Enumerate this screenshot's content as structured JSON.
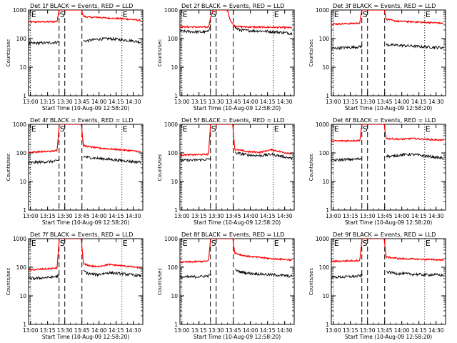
{
  "figure": {
    "x_tick_labels": [
      "13:00",
      "13:15",
      "13:30",
      "13:45",
      "14:00",
      "14:15",
      "14:30"
    ],
    "x_label": "Start Time (10-Aug-09 12:58:20)",
    "y_label": "Counts/sec",
    "y_tick_labels": [
      "1",
      "10",
      "100",
      "1000"
    ],
    "marker_labels": [
      "E",
      "S",
      "E"
    ],
    "colors": {
      "events": "#000000",
      "lld": "#ff0000",
      "axes": "#000000",
      "background": "#ffffff"
    }
  },
  "chart_data": [
    {
      "type": "line",
      "title": "Det 1f BLACK = Events, RED = LLD",
      "xlabel": "Start Time (10-Aug-09 12:58:20)",
      "ylabel": "Counts/sec",
      "x_unit": "minutes after 12:58:20",
      "xlim": [
        0,
        100
      ],
      "ylim": [
        1,
        1200
      ],
      "y_scale": "log",
      "markers": [
        {
          "label": "E",
          "x": 1.7,
          "style": "dotted"
        },
        {
          "label": "S",
          "x": 26.7,
          "style": "dashed"
        },
        {
          "label": "E",
          "x": 81.7,
          "style": "dotted"
        }
      ],
      "gap_markers": [
        31.7,
        46.7
      ],
      "series": [
        {
          "name": "Events",
          "color": "#000000",
          "x": [
            0,
            10,
            20,
            25,
            26.5,
            48.5,
            52,
            60,
            70,
            80,
            90,
            98
          ],
          "y": [
            68,
            70,
            72,
            74,
            78,
            82,
            84,
            95,
            100,
            92,
            85,
            75
          ]
        },
        {
          "name": "LLD",
          "color": "#ff0000",
          "x": [
            0,
            10,
            20,
            25,
            27,
            29,
            46,
            48,
            55,
            60,
            70,
            80,
            90,
            98
          ],
          "y": [
            380,
            385,
            388,
            395,
            1200,
            1200,
            1200,
            600,
            550,
            560,
            520,
            500,
            470,
            430
          ]
        }
      ]
    },
    {
      "type": "line",
      "title": "Det 2f BLACK = Events, RED = LLD",
      "xlabel": "Start Time (10-Aug-09 12:58:20)",
      "ylabel": "Counts/sec",
      "x_unit": "minutes after 12:58:20",
      "xlim": [
        0,
        100
      ],
      "ylim": [
        1,
        1200
      ],
      "y_scale": "log",
      "markers": [
        {
          "label": "E",
          "x": 1.7,
          "style": "dotted"
        },
        {
          "label": "S",
          "x": 26.7,
          "style": "dashed"
        },
        {
          "label": "E",
          "x": 81.7,
          "style": "dotted"
        }
      ],
      "gap_markers": [
        31.7,
        46.7
      ],
      "series": [
        {
          "name": "Events",
          "color": "#000000",
          "x": [
            0,
            10,
            20,
            25,
            27,
            31,
            38,
            42,
            45,
            48,
            52,
            60,
            70,
            80,
            90,
            98
          ],
          "y": [
            180,
            175,
            170,
            175,
            350,
            900,
            900,
            700,
            400,
            250,
            200,
            190,
            185,
            175,
            165,
            150
          ]
        },
        {
          "name": "LLD",
          "color": "#ff0000",
          "x": [
            0,
            10,
            20,
            25,
            27,
            30,
            33,
            38,
            42,
            44,
            47,
            52,
            60,
            70,
            80,
            90,
            98
          ],
          "y": [
            260,
            255,
            250,
            255,
            600,
            1200,
            1200,
            1150,
            900,
            450,
            280,
            260,
            255,
            250,
            250,
            245,
            240
          ]
        }
      ]
    },
    {
      "type": "line",
      "title": "Det 3f BLACK = Events, RED = LLD",
      "xlabel": "Start Time (10-Aug-09 12:58:20)",
      "ylabel": "Counts/sec",
      "x_unit": "minutes after 12:58:20",
      "xlim": [
        0,
        100
      ],
      "ylim": [
        1,
        1200
      ],
      "y_scale": "log",
      "markers": [
        {
          "label": "E",
          "x": 1.7,
          "style": "dotted"
        },
        {
          "label": "S",
          "x": 26.7,
          "style": "dashed"
        },
        {
          "label": "E",
          "x": 81.7,
          "style": "dotted"
        }
      ],
      "gap_markers": [
        31.7,
        46.7
      ],
      "series": [
        {
          "name": "Events",
          "color": "#000000",
          "x": [
            0,
            10,
            20,
            25,
            26.5,
            48.5,
            52,
            60,
            70,
            80,
            90,
            98
          ],
          "y": [
            45,
            48,
            50,
            52,
            55,
            62,
            60,
            58,
            55,
            52,
            50,
            48
          ]
        },
        {
          "name": "LLD",
          "color": "#ff0000",
          "x": [
            0,
            10,
            20,
            25,
            27,
            29,
            46,
            48,
            55,
            60,
            70,
            80,
            90,
            98
          ],
          "y": [
            320,
            330,
            340,
            350,
            1200,
            1200,
            1200,
            480,
            420,
            400,
            390,
            370,
            360,
            340
          ]
        }
      ]
    },
    {
      "type": "line",
      "title": "Det 4f BLACK = Events, RED = LLD",
      "xlabel": "Start Time (10-Aug-09 12:58:20)",
      "ylabel": "Counts/sec",
      "x_unit": "minutes after 12:58:20",
      "xlim": [
        0,
        100
      ],
      "ylim": [
        1,
        1200
      ],
      "y_scale": "log",
      "markers": [
        {
          "label": "E",
          "x": 1.7,
          "style": "dotted"
        },
        {
          "label": "S",
          "x": 26.7,
          "style": "dashed"
        },
        {
          "label": "E",
          "x": 81.7,
          "style": "dotted"
        }
      ],
      "gap_markers": [
        31.7,
        46.7
      ],
      "series": [
        {
          "name": "Events",
          "color": "#000000",
          "x": [
            0,
            10,
            20,
            25,
            26.5,
            48.5,
            52,
            60,
            70,
            80,
            90,
            98
          ],
          "y": [
            45,
            48,
            50,
            52,
            58,
            75,
            70,
            65,
            60,
            55,
            50,
            48
          ]
        },
        {
          "name": "LLD",
          "color": "#ff0000",
          "x": [
            0,
            10,
            20,
            25,
            27,
            29,
            46,
            48,
            55,
            60,
            70,
            80,
            90,
            98
          ],
          "y": [
            105,
            110,
            115,
            120,
            1200,
            1200,
            1200,
            180,
            160,
            150,
            140,
            130,
            120,
            110
          ]
        }
      ]
    },
    {
      "type": "line",
      "title": "Det 5f BLACK = Events, RED = LLD",
      "xlabel": "Start Time (10-Aug-09 12:58:20)",
      "ylabel": "Counts/sec",
      "x_unit": "minutes after 12:58:20",
      "xlim": [
        0,
        100
      ],
      "ylim": [
        1,
        1200
      ],
      "y_scale": "log",
      "markers": [
        {
          "label": "E",
          "x": 1.7,
          "style": "dotted"
        },
        {
          "label": "S",
          "x": 26.7,
          "style": "dashed"
        },
        {
          "label": "E",
          "x": 81.7,
          "style": "dotted"
        }
      ],
      "gap_markers": [
        31.7,
        46.7
      ],
      "series": [
        {
          "name": "Events",
          "color": "#000000",
          "x": [
            0,
            10,
            20,
            25,
            26.5,
            48.5,
            52,
            60,
            70,
            80,
            90,
            98
          ],
          "y": [
            55,
            56,
            58,
            60,
            62,
            100,
            95,
            85,
            80,
            90,
            75,
            65
          ]
        },
        {
          "name": "LLD",
          "color": "#ff0000",
          "x": [
            0,
            10,
            20,
            25,
            27,
            29,
            46,
            48,
            55,
            60,
            70,
            80,
            90,
            98
          ],
          "y": [
            85,
            86,
            88,
            90,
            1200,
            1200,
            1200,
            130,
            120,
            110,
            105,
            130,
            105,
            95
          ]
        }
      ]
    },
    {
      "type": "line",
      "title": "Det 6f BLACK = Events, RED = LLD",
      "xlabel": "Start Time (10-Aug-09 12:58:20)",
      "ylabel": "Counts/sec",
      "x_unit": "minutes after 12:58:20",
      "xlim": [
        0,
        100
      ],
      "ylim": [
        1,
        1200
      ],
      "y_scale": "log",
      "markers": [
        {
          "label": "E",
          "x": 1.7,
          "style": "dotted"
        },
        {
          "label": "S",
          "x": 26.7,
          "style": "dashed"
        },
        {
          "label": "E",
          "x": 81.7,
          "style": "dotted"
        }
      ],
      "gap_markers": [
        31.7,
        46.7
      ],
      "series": [
        {
          "name": "Events",
          "color": "#000000",
          "x": [
            0,
            10,
            20,
            25,
            26.5,
            48.5,
            52,
            60,
            70,
            80,
            90,
            98
          ],
          "y": [
            55,
            58,
            60,
            62,
            65,
            80,
            75,
            85,
            90,
            80,
            72,
            65
          ]
        },
        {
          "name": "LLD",
          "color": "#ff0000",
          "x": [
            0,
            10,
            20,
            25,
            27,
            29,
            46,
            48,
            55,
            60,
            70,
            80,
            90,
            98
          ],
          "y": [
            260,
            265,
            270,
            275,
            1200,
            1200,
            1200,
            320,
            310,
            300,
            320,
            305,
            290,
            280
          ]
        }
      ]
    },
    {
      "type": "line",
      "title": "Det 7f BLACK = Events, RED = LLD",
      "xlabel": "Start Time (10-Aug-09 12:58:20)",
      "ylabel": "Counts/sec",
      "x_unit": "minutes after 12:58:20",
      "xlim": [
        0,
        100
      ],
      "ylim": [
        1,
        1200
      ],
      "y_scale": "log",
      "markers": [
        {
          "label": "E",
          "x": 1.7,
          "style": "dotted"
        },
        {
          "label": "S",
          "x": 26.7,
          "style": "dashed"
        },
        {
          "label": "E",
          "x": 81.7,
          "style": "dotted"
        }
      ],
      "gap_markers": [
        31.7,
        46.7
      ],
      "series": [
        {
          "name": "Events",
          "color": "#000000",
          "x": [
            0,
            10,
            20,
            25,
            26.5,
            48.5,
            52,
            60,
            70,
            80,
            90,
            98
          ],
          "y": [
            40,
            42,
            45,
            48,
            52,
            75,
            60,
            55,
            65,
            60,
            55,
            50
          ]
        },
        {
          "name": "LLD",
          "color": "#ff0000",
          "x": [
            0,
            10,
            20,
            25,
            27,
            29,
            46,
            48,
            55,
            60,
            70,
            80,
            90,
            98
          ],
          "y": [
            80,
            85,
            90,
            95,
            1200,
            1200,
            1200,
            130,
            110,
            105,
            125,
            115,
            105,
            95
          ]
        }
      ]
    },
    {
      "type": "line",
      "title": "Det 8f BLACK = Events, RED = LLD",
      "xlabel": "Start Time (10-Aug-09 12:58:20)",
      "ylabel": "Counts/sec",
      "x_unit": "minutes after 12:58:20",
      "xlim": [
        0,
        100
      ],
      "ylim": [
        1,
        1200
      ],
      "y_scale": "log",
      "markers": [
        {
          "label": "E",
          "x": 1.7,
          "style": "dotted"
        },
        {
          "label": "S",
          "x": 26.7,
          "style": "dashed"
        },
        {
          "label": "E",
          "x": 81.7,
          "style": "dotted"
        }
      ],
      "gap_markers": [
        31.7,
        46.7
      ],
      "series": [
        {
          "name": "Events",
          "color": "#000000",
          "x": [
            0,
            10,
            20,
            25,
            26.5,
            48.5,
            52,
            60,
            70,
            80,
            90,
            98
          ],
          "y": [
            45,
            46,
            48,
            50,
            55,
            80,
            70,
            62,
            58,
            55,
            52,
            48
          ]
        },
        {
          "name": "LLD",
          "color": "#ff0000",
          "x": [
            0,
            10,
            20,
            25,
            27,
            29,
            46,
            48,
            55,
            60,
            70,
            80,
            90,
            98
          ],
          "y": [
            150,
            155,
            160,
            165,
            1200,
            1200,
            1200,
            320,
            260,
            240,
            220,
            200,
            190,
            180
          ]
        }
      ]
    },
    {
      "type": "line",
      "title": "Det 9f BLACK = Events, RED = LLD",
      "xlabel": "Start Time (10-Aug-09 12:58:20)",
      "ylabel": "Counts/sec",
      "x_unit": "minutes after 12:58:20",
      "xlim": [
        0,
        100
      ],
      "ylim": [
        1,
        1200
      ],
      "y_scale": "log",
      "markers": [
        {
          "label": "E",
          "x": 1.7,
          "style": "dotted"
        },
        {
          "label": "S",
          "x": 26.7,
          "style": "dashed"
        },
        {
          "label": "E",
          "x": 81.7,
          "style": "dotted"
        }
      ],
      "gap_markers": [
        31.7,
        46.7
      ],
      "series": [
        {
          "name": "Events",
          "color": "#000000",
          "x": [
            0,
            10,
            20,
            25,
            26.5,
            48.5,
            52,
            60,
            70,
            80,
            90,
            98
          ],
          "y": [
            45,
            46,
            48,
            50,
            52,
            70,
            65,
            60,
            58,
            55,
            55,
            52
          ]
        },
        {
          "name": "LLD",
          "color": "#ff0000",
          "x": [
            0,
            10,
            20,
            25,
            27,
            29,
            46,
            48,
            55,
            60,
            70,
            80,
            90,
            98
          ],
          "y": [
            160,
            165,
            170,
            175,
            1200,
            1200,
            1200,
            230,
            210,
            200,
            195,
            190,
            185,
            180
          ]
        }
      ]
    }
  ]
}
